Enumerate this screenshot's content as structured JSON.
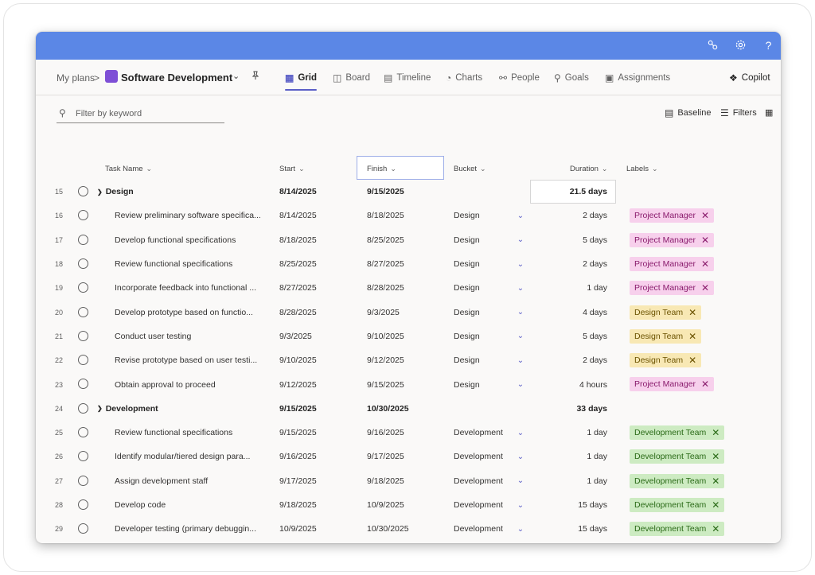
{
  "titlebar": {
    "icons": [
      "share-people-icon",
      "gear-icon",
      "help-icon"
    ],
    "help_glyph": "?"
  },
  "nav": {
    "breadcrumb_root": "My plans",
    "breadcrumb_sep": ">",
    "plan_title": "Software Development",
    "tabs": [
      {
        "label": "Grid",
        "icon": "grid-icon",
        "active": true
      },
      {
        "label": "Board",
        "icon": "board-icon",
        "active": false
      },
      {
        "label": "Timeline",
        "icon": "timeline-icon",
        "active": false
      },
      {
        "label": "Charts",
        "icon": "charts-icon",
        "active": false
      },
      {
        "label": "People",
        "icon": "people-icon",
        "active": false
      },
      {
        "label": "Goals",
        "icon": "trophy-icon",
        "active": false
      },
      {
        "label": "Assignments",
        "icon": "assignments-icon",
        "active": false
      }
    ],
    "copilot_label": "Copilot"
  },
  "toolbar": {
    "search_placeholder": "Filter by keyword",
    "baseline_label": "Baseline",
    "filters_label": "Filters"
  },
  "columns": {
    "task_name": "Task Name",
    "start": "Start",
    "finish": "Finish",
    "bucket": "Bucket",
    "duration": "Duration",
    "labels": "Labels"
  },
  "colors": {
    "titlebar": "#5b87e6",
    "accent": "#5b5fc7",
    "project_manager_bg": "#f7d0ec",
    "design_team_bg": "#f8e8b4",
    "development_team_bg": "#cdebc2"
  },
  "rows": [
    {
      "num": "15",
      "name": "Design",
      "group": true,
      "start": "8/14/2025",
      "finish": "9/15/2025",
      "bucket": "",
      "duration": "21.5 days",
      "label": ""
    },
    {
      "num": "16",
      "name": "Review preliminary software specifica...",
      "group": false,
      "start": "8/14/2025",
      "finish": "8/18/2025",
      "bucket": "Design",
      "duration": "2 days",
      "label": "Project Manager",
      "label_type": "pm"
    },
    {
      "num": "17",
      "name": "Develop functional specifications",
      "group": false,
      "start": "8/18/2025",
      "finish": "8/25/2025",
      "bucket": "Design",
      "duration": "5 days",
      "label": "Project Manager",
      "label_type": "pm"
    },
    {
      "num": "18",
      "name": "Review functional specifications",
      "group": false,
      "start": "8/25/2025",
      "finish": "8/27/2025",
      "bucket": "Design",
      "duration": "2 days",
      "label": "Project Manager",
      "label_type": "pm"
    },
    {
      "num": "19",
      "name": "Incorporate feedback into functional ...",
      "group": false,
      "start": "8/27/2025",
      "finish": "8/28/2025",
      "bucket": "Design",
      "duration": "1 day",
      "label": "Project Manager",
      "label_type": "pm"
    },
    {
      "num": "20",
      "name": "Develop prototype based on functio...",
      "group": false,
      "start": "8/28/2025",
      "finish": "9/3/2025",
      "bucket": "Design",
      "duration": "4 days",
      "label": "Design Team",
      "label_type": "dt"
    },
    {
      "num": "21",
      "name": "Conduct user testing",
      "group": false,
      "start": "9/3/2025",
      "finish": "9/10/2025",
      "bucket": "Design",
      "duration": "5 days",
      "label": "Design Team",
      "label_type": "dt"
    },
    {
      "num": "22",
      "name": "Revise prototype based on user testi...",
      "group": false,
      "start": "9/10/2025",
      "finish": "9/12/2025",
      "bucket": "Design",
      "duration": "2 days",
      "label": "Design Team",
      "label_type": "dt"
    },
    {
      "num": "23",
      "name": "Obtain approval to proceed",
      "group": false,
      "start": "9/12/2025",
      "finish": "9/15/2025",
      "bucket": "Design",
      "duration": "4 hours",
      "label": "Project Manager",
      "label_type": "pm"
    },
    {
      "num": "24",
      "name": "Development",
      "group": true,
      "start": "9/15/2025",
      "finish": "10/30/2025",
      "bucket": "",
      "duration": "33 days",
      "label": ""
    },
    {
      "num": "25",
      "name": "Review functional specifications",
      "group": false,
      "start": "9/15/2025",
      "finish": "9/16/2025",
      "bucket": "Development",
      "duration": "1 day",
      "label": "Development Team",
      "label_type": "dev"
    },
    {
      "num": "26",
      "name": "Identify modular/tiered design para...",
      "group": false,
      "start": "9/16/2025",
      "finish": "9/17/2025",
      "bucket": "Development",
      "duration": "1 day",
      "label": "Development Team",
      "label_type": "dev"
    },
    {
      "num": "27",
      "name": "Assign development staff",
      "group": false,
      "start": "9/17/2025",
      "finish": "9/18/2025",
      "bucket": "Development",
      "duration": "1 day",
      "label": "Development Team",
      "label_type": "dev"
    },
    {
      "num": "28",
      "name": "Develop code",
      "group": false,
      "start": "9/18/2025",
      "finish": "10/9/2025",
      "bucket": "Development",
      "duration": "15 days",
      "label": "Development Team",
      "label_type": "dev"
    },
    {
      "num": "29",
      "name": "Developer testing (primary debuggin...",
      "group": false,
      "start": "10/9/2025",
      "finish": "10/30/2025",
      "bucket": "Development",
      "duration": "15 days",
      "label": "Development Team",
      "label_type": "dev"
    }
  ]
}
